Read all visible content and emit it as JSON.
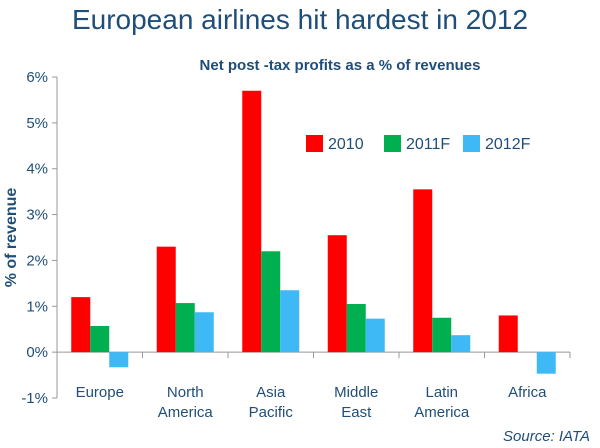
{
  "title": "European airlines hit hardest in 2012",
  "source": "Source: IATA",
  "chart_data": {
    "type": "bar",
    "title": "Net post -tax profits as a % of revenues",
    "ylabel": "% of revenue",
    "xlabel": "",
    "ylim": [
      -1,
      6
    ],
    "yticks": [
      "-1%",
      "0%",
      "1%",
      "2%",
      "3%",
      "4%",
      "5%",
      "6%"
    ],
    "ytick_values": [
      -1,
      0,
      1,
      2,
      3,
      4,
      5,
      6
    ],
    "categories": [
      [
        "Europe"
      ],
      [
        "North",
        "America"
      ],
      [
        "Asia",
        "Pacific"
      ],
      [
        "Middle",
        "East"
      ],
      [
        "Latin",
        "America"
      ],
      [
        "Africa"
      ]
    ],
    "series": [
      {
        "name": "2010",
        "color": "#ff0000",
        "values": [
          1.2,
          2.3,
          5.7,
          2.55,
          3.55,
          0.8
        ]
      },
      {
        "name": "2011F",
        "color": "#00b050",
        "values": [
          0.57,
          1.07,
          2.2,
          1.05,
          0.75,
          0.0
        ]
      },
      {
        "name": "2012F",
        "color": "#3fb9f5",
        "values": [
          -0.33,
          0.87,
          1.35,
          0.73,
          0.37,
          -0.47
        ]
      }
    ],
    "legend_position": "upper-right",
    "grid": false
  }
}
